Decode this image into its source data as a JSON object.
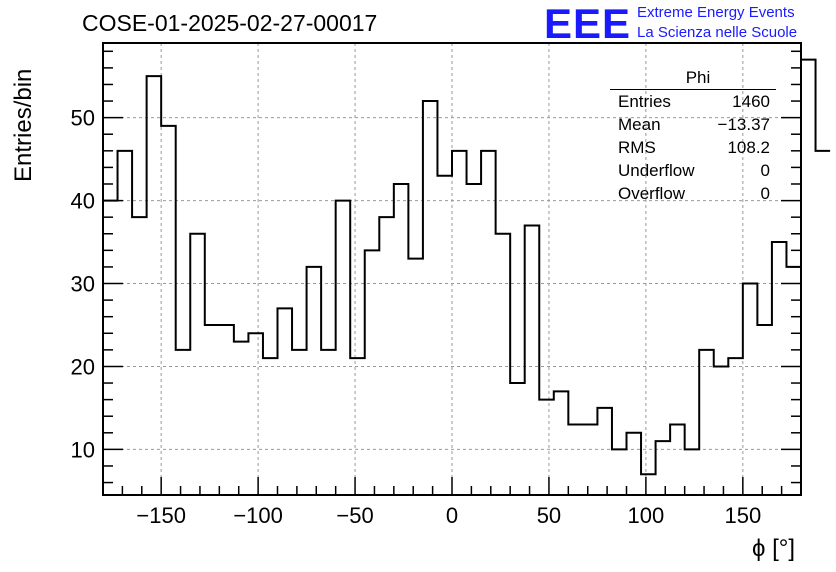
{
  "header": {
    "run_title": "COSE-01-2025-02-27-00017",
    "logo_text": "EEE",
    "logo_line1": "Extreme Energy Events",
    "logo_line2": "La Scienza nelle Scuole"
  },
  "colors": {
    "logo": "#1a1aff",
    "line": "#000000",
    "grid": "#999999"
  },
  "stats_box": {
    "title": "Phi",
    "rows": [
      {
        "label": "Entries",
        "value": "1460"
      },
      {
        "label": "Mean",
        "value": "−13.37"
      },
      {
        "label": "RMS",
        "value": "108.2"
      },
      {
        "label": "Underflow",
        "value": "0"
      },
      {
        "label": "Overflow",
        "value": "0"
      }
    ]
  },
  "chart_data": {
    "type": "histogram",
    "title": "COSE-01-2025-02-27-00017",
    "xlabel": "ϕ [°]",
    "ylabel": "Entries/bin",
    "xlim": [
      -180,
      180
    ],
    "ylim": [
      4.5,
      59
    ],
    "bin_width": 7.5,
    "xticks": [
      -150,
      -100,
      -50,
      0,
      50,
      100,
      150
    ],
    "xtick_labels": [
      "−150",
      "−100",
      "−50",
      "0",
      "50",
      "100",
      "150"
    ],
    "yticks": [
      10,
      20,
      30,
      40,
      50
    ],
    "ytick_labels": [
      "10",
      "20",
      "30",
      "40",
      "50"
    ],
    "grid": true,
    "values": [
      40,
      46,
      38,
      55,
      49,
      22,
      36,
      25,
      25,
      23,
      24,
      21,
      27,
      22,
      32,
      22,
      40,
      21,
      34,
      38,
      42,
      33,
      52,
      43,
      46,
      42,
      46,
      36,
      18,
      37,
      16,
      17,
      13,
      13,
      15,
      10,
      12,
      7,
      11,
      13,
      10,
      22,
      20,
      21,
      30,
      25,
      35,
      32,
      57,
      46
    ]
  }
}
